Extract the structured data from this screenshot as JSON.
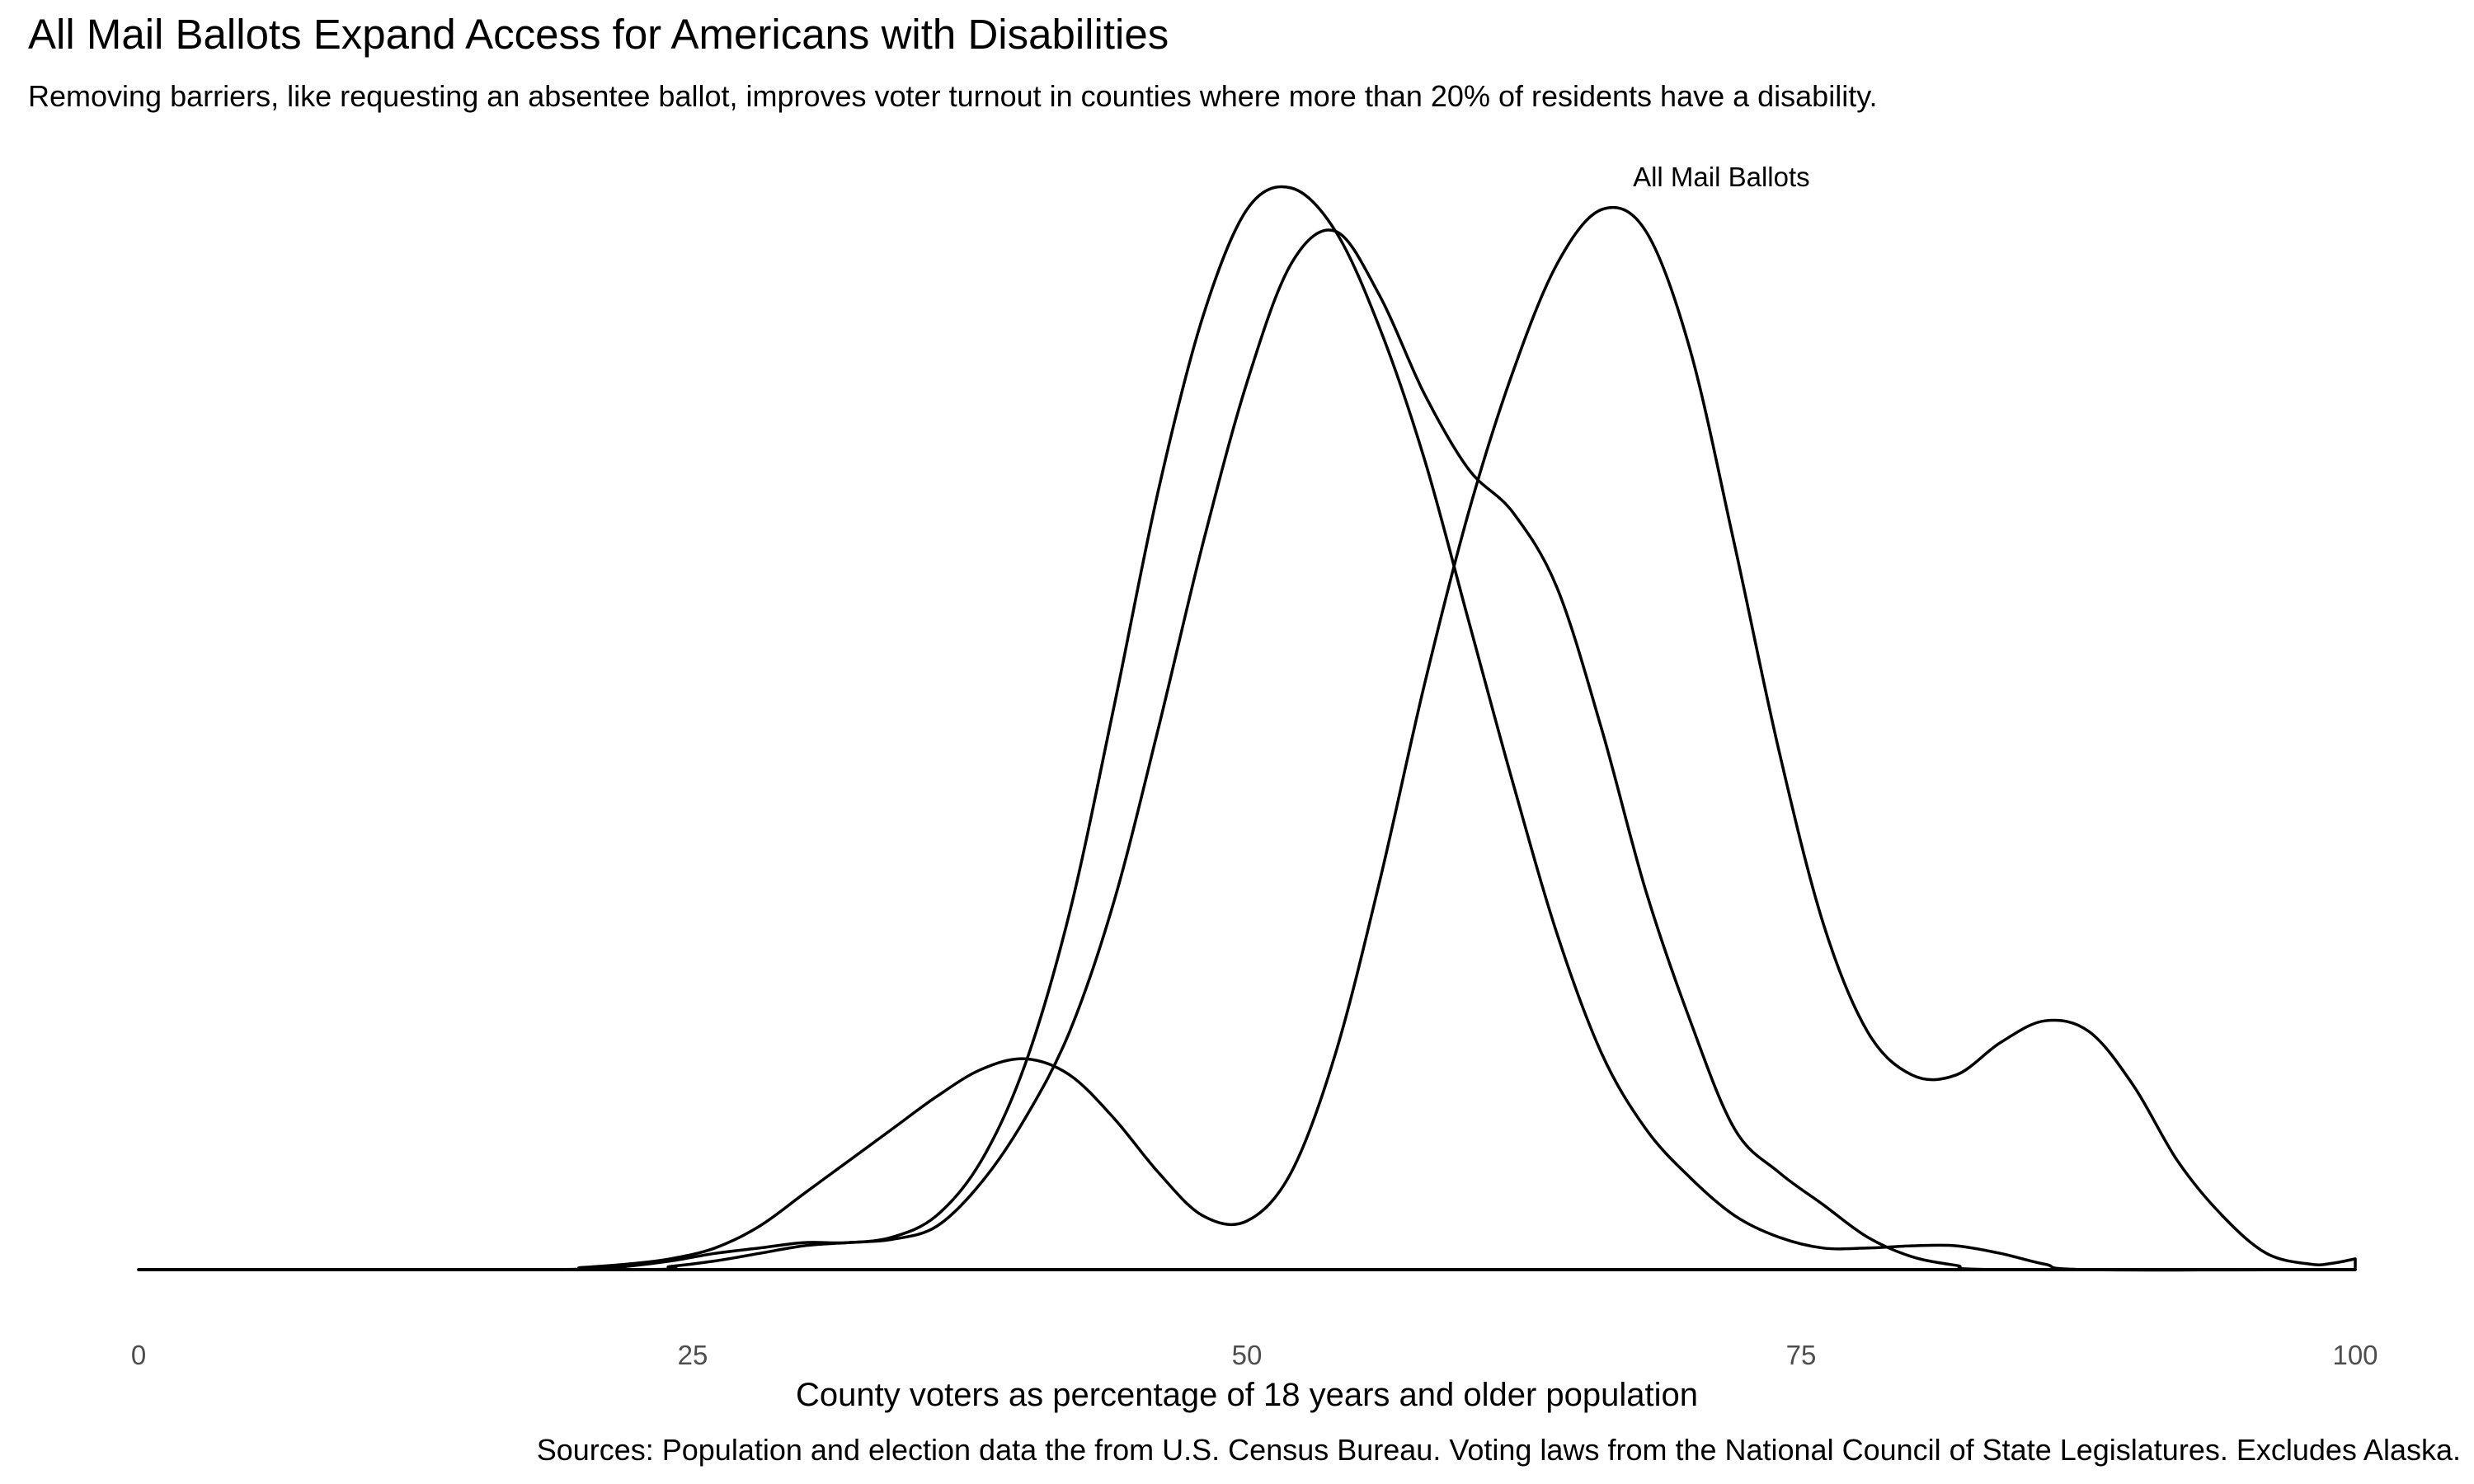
{
  "title": "All Mail Ballots Expand Access for Americans with Disabilities",
  "subtitle": "Removing barriers, like requesting an absentee ballot, improves voter turnout in counties where more than 20% of residents have a disability.",
  "caption": "Sources: Population and election data the from U.S. Census Bureau. Voting laws from the National Council of State Legislatures. Excludes Alaska.",
  "chart_data": {
    "type": "area",
    "xlabel": "County voters as percentage of 18 years and older population",
    "ylabel": "",
    "xlim": [
      0,
      100
    ],
    "ylim": [
      0,
      1.05
    ],
    "grid": false,
    "x_ticks": [
      0,
      25,
      50,
      75,
      100
    ],
    "x_tick_labels": [
      "0",
      "25",
      "50",
      "75",
      "100"
    ],
    "line_color": "#000000",
    "series": [
      {
        "points": [
          [
            0,
            0
          ],
          [
            18,
            0
          ],
          [
            20,
            0
          ],
          [
            22,
            0.003
          ],
          [
            24,
            0.008
          ],
          [
            26,
            0.015
          ],
          [
            28,
            0.02
          ],
          [
            30,
            0.025
          ],
          [
            32,
            0.025
          ],
          [
            34,
            0.03
          ],
          [
            36,
            0.05
          ],
          [
            38,
            0.1
          ],
          [
            40,
            0.19
          ],
          [
            42,
            0.33
          ],
          [
            44,
            0.52
          ],
          [
            46,
            0.72
          ],
          [
            48,
            0.88
          ],
          [
            50,
            0.98
          ],
          [
            52,
            1.0
          ],
          [
            54,
            0.96
          ],
          [
            56,
            0.87
          ],
          [
            58,
            0.75
          ],
          [
            60,
            0.6
          ],
          [
            62,
            0.45
          ],
          [
            64,
            0.31
          ],
          [
            66,
            0.2
          ],
          [
            68,
            0.13
          ],
          [
            70,
            0.085
          ],
          [
            72,
            0.05
          ],
          [
            74,
            0.03
          ],
          [
            76,
            0.02
          ],
          [
            78,
            0.02
          ],
          [
            80,
            0.022
          ],
          [
            82,
            0.022
          ],
          [
            84,
            0.015
          ],
          [
            86,
            0.005
          ],
          [
            88,
            0
          ],
          [
            100,
            0
          ]
        ]
      },
      {
        "points": [
          [
            0,
            0
          ],
          [
            22,
            0
          ],
          [
            24,
            0.003
          ],
          [
            26,
            0.008
          ],
          [
            28,
            0.015
          ],
          [
            30,
            0.022
          ],
          [
            32,
            0.025
          ],
          [
            34,
            0.028
          ],
          [
            36,
            0.04
          ],
          [
            38,
            0.08
          ],
          [
            40,
            0.14
          ],
          [
            42,
            0.22
          ],
          [
            44,
            0.34
          ],
          [
            46,
            0.5
          ],
          [
            48,
            0.67
          ],
          [
            50,
            0.82
          ],
          [
            52,
            0.93
          ],
          [
            54,
            0.96
          ],
          [
            56,
            0.9
          ],
          [
            58,
            0.81
          ],
          [
            60,
            0.74
          ],
          [
            62,
            0.7
          ],
          [
            64,
            0.63
          ],
          [
            66,
            0.5
          ],
          [
            68,
            0.35
          ],
          [
            70,
            0.23
          ],
          [
            72,
            0.13
          ],
          [
            74,
            0.09
          ],
          [
            76,
            0.06
          ],
          [
            78,
            0.03
          ],
          [
            80,
            0.012
          ],
          [
            82,
            0.004
          ],
          [
            84,
            0
          ],
          [
            100,
            0
          ]
        ]
      },
      {
        "name": "All Mail Ballots",
        "points": [
          [
            0,
            0
          ],
          [
            18,
            0
          ],
          [
            20,
            0.002
          ],
          [
            22,
            0.005
          ],
          [
            24,
            0.01
          ],
          [
            26,
            0.02
          ],
          [
            28,
            0.04
          ],
          [
            30,
            0.07
          ],
          [
            32,
            0.1
          ],
          [
            34,
            0.13
          ],
          [
            36,
            0.16
          ],
          [
            38,
            0.185
          ],
          [
            40,
            0.195
          ],
          [
            42,
            0.18
          ],
          [
            44,
            0.14
          ],
          [
            46,
            0.09
          ],
          [
            48,
            0.05
          ],
          [
            50,
            0.045
          ],
          [
            52,
            0.09
          ],
          [
            54,
            0.2
          ],
          [
            56,
            0.36
          ],
          [
            58,
            0.54
          ],
          [
            60,
            0.7
          ],
          [
            62,
            0.83
          ],
          [
            64,
            0.93
          ],
          [
            66,
            0.98
          ],
          [
            68,
            0.96
          ],
          [
            70,
            0.85
          ],
          [
            72,
            0.67
          ],
          [
            74,
            0.48
          ],
          [
            76,
            0.32
          ],
          [
            78,
            0.22
          ],
          [
            80,
            0.18
          ],
          [
            82,
            0.18
          ],
          [
            84,
            0.21
          ],
          [
            86,
            0.23
          ],
          [
            88,
            0.22
          ],
          [
            90,
            0.17
          ],
          [
            92,
            0.1
          ],
          [
            94,
            0.05
          ],
          [
            96,
            0.015
          ],
          [
            98,
            0.005
          ],
          [
            99,
            0.006
          ],
          [
            100,
            0.01
          ]
        ]
      }
    ]
  }
}
